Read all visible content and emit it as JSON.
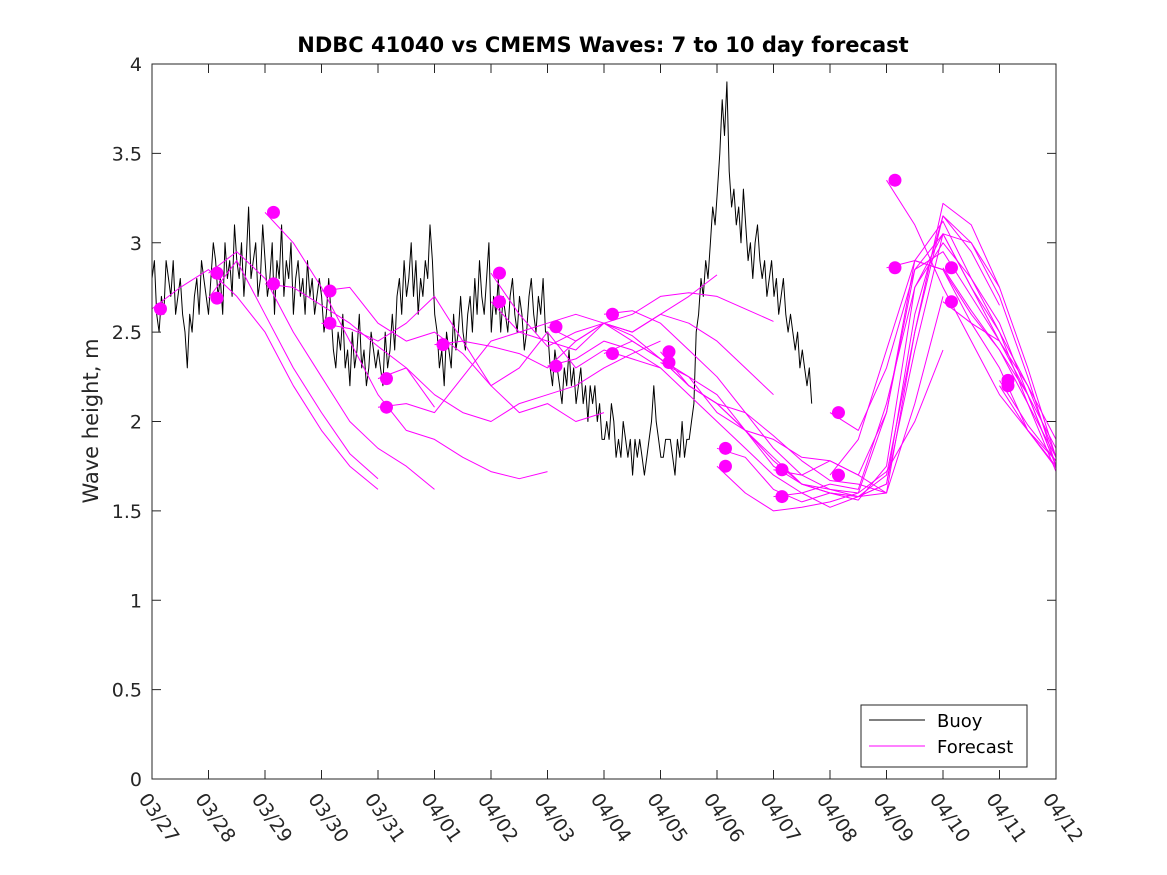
{
  "chart_data": {
    "type": "line",
    "title": "NDBC 41040 vs CMEMS Waves: 7 to 10 day forecast",
    "xlabel": "",
    "ylabel": "Wave height, m",
    "xlim": [
      0,
      16
    ],
    "ylim": [
      0,
      4
    ],
    "grid": false,
    "legend_position": "bottom-right",
    "x_tick_labels": [
      "03/27",
      "03/28",
      "03/29",
      "03/30",
      "03/31",
      "04/01",
      "04/02",
      "04/03",
      "04/04",
      "04/05",
      "04/06",
      "04/07",
      "04/08",
      "04/09",
      "04/10",
      "04/11",
      "04/12"
    ],
    "y_ticks": [
      0,
      0.5,
      1,
      1.5,
      2,
      2.5,
      3,
      3.5,
      4
    ],
    "y_tick_labels": [
      "0",
      "0.5",
      "1",
      "1.5",
      "2",
      "2.5",
      "3",
      "3.5",
      "4"
    ],
    "colors": {
      "buoy": "#000000",
      "forecast": "#ff00ff"
    },
    "legend": [
      "Buoy",
      "Forecast"
    ],
    "series": [
      {
        "name": "Buoy",
        "x_start": 0,
        "x_step": 0.0417,
        "values": [
          2.8,
          2.9,
          2.6,
          2.5,
          2.7,
          2.6,
          2.9,
          2.8,
          2.7,
          2.9,
          2.6,
          2.7,
          2.8,
          2.6,
          2.5,
          2.3,
          2.6,
          2.5,
          2.7,
          2.8,
          2.6,
          2.9,
          2.8,
          2.7,
          2.6,
          2.8,
          3.0,
          2.9,
          2.7,
          2.8,
          2.6,
          3.0,
          2.8,
          2.9,
          2.7,
          3.1,
          2.9,
          2.8,
          3.0,
          2.7,
          2.9,
          3.2,
          2.8,
          2.9,
          3.0,
          2.7,
          2.8,
          3.1,
          2.9,
          2.7,
          2.8,
          3.0,
          2.6,
          2.9,
          2.8,
          3.1,
          2.7,
          2.9,
          2.8,
          3.0,
          2.6,
          2.8,
          2.9,
          2.7,
          2.8,
          2.6,
          2.9,
          2.7,
          2.8,
          2.6,
          2.7,
          2.8,
          2.7,
          2.5,
          2.6,
          2.8,
          2.6,
          2.4,
          2.3,
          2.5,
          2.4,
          2.6,
          2.3,
          2.4,
          2.2,
          2.5,
          2.3,
          2.4,
          2.6,
          2.3,
          2.4,
          2.2,
          2.3,
          2.5,
          2.4,
          2.3,
          2.4,
          2.3,
          2.2,
          2.5,
          2.3,
          2.4,
          2.6,
          2.4,
          2.7,
          2.8,
          2.6,
          2.9,
          2.7,
          2.8,
          3.0,
          2.7,
          2.9,
          2.6,
          2.8,
          2.7,
          2.9,
          2.8,
          3.1,
          2.9,
          2.6,
          2.5,
          2.3,
          2.4,
          2.2,
          2.5,
          2.4,
          2.3,
          2.6,
          2.4,
          2.5,
          2.7,
          2.5,
          2.4,
          2.6,
          2.7,
          2.5,
          2.8,
          2.6,
          2.9,
          2.7,
          2.6,
          2.8,
          3.0,
          2.5,
          2.7,
          2.6,
          2.8,
          2.5,
          2.7,
          2.6,
          2.5,
          2.7,
          2.8,
          2.6,
          2.5,
          2.7,
          2.6,
          2.4,
          2.5,
          2.7,
          2.8,
          2.6,
          2.5,
          2.7,
          2.6,
          2.8,
          2.5,
          2.5,
          2.3,
          2.2,
          2.4,
          2.3,
          2.2,
          2.1,
          2.3,
          2.2,
          2.4,
          2.2,
          2.3,
          2.1,
          2.2,
          2.3,
          2.1,
          2.2,
          2.0,
          2.2,
          2.1,
          2.2,
          2.0,
          2.1,
          1.9,
          1.9,
          2.0,
          1.9,
          2.1,
          2.0,
          1.8,
          1.9,
          1.8,
          2.0,
          1.9,
          1.8,
          1.9,
          1.7,
          1.9,
          1.8,
          1.9,
          1.8,
          1.7,
          1.8,
          1.9,
          2.0,
          2.2,
          2.0,
          1.9,
          1.8,
          1.8,
          1.9,
          1.9,
          1.9,
          1.8,
          1.7,
          1.9,
          1.8,
          2.0,
          1.8,
          1.9,
          1.9,
          2.0,
          2.1,
          2.5,
          2.6,
          2.8,
          2.7,
          2.9,
          2.8,
          3.0,
          3.2,
          3.1,
          3.3,
          3.5,
          3.8,
          3.6,
          3.9,
          3.4,
          3.2,
          3.3,
          3.1,
          3.2,
          3.0,
          3.3,
          3.1,
          2.9,
          3.0,
          2.8,
          3.0,
          3.1,
          2.9,
          2.8,
          2.9,
          2.7,
          2.8,
          2.9,
          2.7,
          2.8,
          2.6,
          2.7,
          2.8,
          2.6,
          2.5,
          2.6,
          2.5,
          2.4,
          2.5,
          2.3,
          2.4,
          2.3,
          2.2,
          2.3,
          2.1
        ]
      },
      {
        "name": "Forecast",
        "x": [
          0,
          0.5,
          1,
          1.5,
          2,
          2.5,
          3,
          3.5,
          4
        ],
        "values": [
          2.63,
          2.75,
          2.85,
          2.7,
          2.5,
          2.2,
          1.95,
          1.75,
          1.62
        ]
      },
      {
        "name": "Forecast",
        "x": [
          1,
          1.5,
          2,
          2.5,
          3,
          3.5,
          4,
          4.5,
          5
        ],
        "values": [
          2.83,
          2.95,
          2.8,
          2.5,
          2.25,
          2.0,
          1.85,
          1.75,
          1.62
        ]
      },
      {
        "name": "Forecast",
        "x": [
          1,
          1.5,
          2,
          2.5,
          3,
          3.5,
          4
        ],
        "values": [
          2.69,
          2.9,
          2.6,
          2.3,
          2.05,
          1.82,
          1.68
        ]
      },
      {
        "name": "Forecast",
        "x": [
          2,
          2.5,
          3,
          3.5,
          4,
          4.5,
          5,
          5.5,
          6,
          6.5,
          7
        ],
        "values": [
          3.17,
          3.0,
          2.75,
          2.45,
          2.15,
          1.95,
          1.9,
          1.8,
          1.72,
          1.68,
          1.72
        ]
      },
      {
        "name": "Forecast",
        "x": [
          2,
          2.5,
          3,
          3.5,
          4,
          4.5,
          5
        ],
        "values": [
          2.77,
          2.75,
          2.65,
          2.55,
          2.42,
          2.3,
          2.08
        ]
      },
      {
        "name": "Forecast",
        "x": [
          3,
          3.5,
          4,
          4.5,
          5,
          5.5,
          6,
          6.5,
          7,
          7.5,
          8
        ],
        "values": [
          2.73,
          2.75,
          2.55,
          2.45,
          2.5,
          2.38,
          2.2,
          2.05,
          2.1,
          2.0,
          2.05
        ]
      },
      {
        "name": "Forecast",
        "x": [
          3,
          3.5,
          4,
          4.5,
          5,
          5.5,
          6,
          6.5,
          7,
          7.5,
          8,
          8.5,
          9
        ],
        "values": [
          2.55,
          2.52,
          2.45,
          2.55,
          2.7,
          2.45,
          2.2,
          2.3,
          2.5,
          2.3,
          2.4,
          2.35,
          2.3
        ]
      },
      {
        "name": "Forecast",
        "x": [
          4,
          4.5,
          5,
          5.5,
          6,
          6.5,
          7,
          7.5,
          8,
          8.5,
          9
        ],
        "values": [
          2.24,
          2.3,
          2.15,
          2.05,
          2.0,
          2.1,
          2.15,
          2.2,
          2.3,
          2.38,
          2.45
        ]
      },
      {
        "name": "Forecast",
        "x": [
          4,
          4.5,
          5,
          5.5,
          6,
          6.5,
          7,
          7.5,
          8,
          8.5,
          9,
          9.5,
          10
        ],
        "values": [
          2.08,
          2.1,
          2.05,
          2.25,
          2.45,
          2.5,
          2.55,
          2.6,
          2.55,
          2.5,
          2.6,
          2.7,
          2.82
        ]
      },
      {
        "name": "Forecast",
        "x": [
          5,
          5.5,
          6,
          6.5,
          7,
          7.5,
          8,
          8.5,
          9,
          9.5,
          10,
          10.5,
          11
        ],
        "values": [
          2.43,
          2.45,
          2.42,
          2.38,
          2.3,
          2.45,
          2.55,
          2.6,
          2.7,
          2.72,
          2.7,
          2.63,
          2.56
        ]
      },
      {
        "name": "Forecast",
        "x": [
          6,
          6.5,
          7,
          7.5,
          8,
          8.5,
          9,
          9.5,
          10,
          10.5,
          11
        ],
        "values": [
          2.83,
          2.6,
          2.42,
          2.5,
          2.55,
          2.5,
          2.6,
          2.55,
          2.45,
          2.3,
          2.15
        ]
      },
      {
        "name": "Forecast",
        "x": [
          6,
          6.5,
          7,
          7.5,
          8,
          8.5,
          9,
          9.5,
          10,
          10.5,
          11,
          11.5,
          12,
          12.5,
          13
        ],
        "values": [
          2.67,
          2.5,
          2.45,
          2.4,
          2.55,
          2.48,
          2.35,
          2.2,
          2.1,
          1.95,
          1.9,
          1.8,
          1.78,
          1.7,
          1.6
        ]
      },
      {
        "name": "Forecast",
        "x": [
          7,
          7.5,
          8,
          8.5,
          9,
          9.5,
          10,
          10.5,
          11,
          11.5,
          12,
          12.5,
          13,
          13.5,
          14
        ],
        "values": [
          2.53,
          2.45,
          2.55,
          2.45,
          2.35,
          2.25,
          2.05,
          1.95,
          1.75,
          1.65,
          1.62,
          1.6,
          1.72,
          2.0,
          2.4
        ]
      },
      {
        "name": "Forecast",
        "x": [
          7,
          7.5,
          8,
          8.5,
          9,
          9.5,
          10,
          10.5,
          11,
          11.5,
          12,
          12.5,
          13,
          13.5,
          14
        ],
        "values": [
          2.31,
          2.35,
          2.45,
          2.4,
          2.3,
          2.15,
          2.0,
          1.85,
          1.7,
          1.6,
          1.52,
          1.58,
          1.6,
          2.1,
          2.7
        ]
      },
      {
        "name": "Forecast",
        "x": [
          8,
          8.5,
          9,
          9.5,
          10,
          10.5,
          11,
          11.5,
          12,
          12.5,
          13,
          13.5,
          14,
          14.5,
          15
        ],
        "values": [
          2.6,
          2.62,
          2.55,
          2.4,
          2.25,
          2.05,
          1.85,
          1.7,
          1.62,
          1.58,
          1.65,
          2.4,
          3.05,
          3.0,
          2.75
        ]
      },
      {
        "name": "Forecast",
        "x": [
          8,
          8.5,
          9,
          9.5,
          10,
          10.5,
          11,
          11.5,
          12,
          12.5,
          13,
          13.5,
          14,
          14.5,
          15
        ],
        "values": [
          2.38,
          2.45,
          2.35,
          2.2,
          2.1,
          1.95,
          1.78,
          1.65,
          1.6,
          1.58,
          1.7,
          2.5,
          3.15,
          2.95,
          2.65
        ]
      },
      {
        "name": "Forecast",
        "x": [
          9,
          9.5,
          10,
          10.5,
          11,
          11.5,
          12,
          12.5,
          13,
          13.5,
          14,
          14.5,
          15,
          15.5,
          16
        ],
        "values": [
          2.39,
          2.2,
          2.1,
          2.05,
          1.92,
          1.78,
          1.67,
          1.65,
          1.6,
          2.5,
          3.22,
          3.1,
          2.75,
          2.3,
          1.8
        ]
      },
      {
        "name": "Forecast",
        "x": [
          9,
          9.5,
          10,
          10.5,
          11,
          11.5,
          12,
          12.5,
          13,
          13.5,
          14,
          14.5,
          15,
          15.5,
          16
        ],
        "values": [
          2.33,
          2.25,
          2.15,
          1.95,
          1.8,
          1.65,
          1.6,
          1.58,
          1.65,
          2.6,
          3.15,
          3.0,
          2.7,
          2.25,
          1.75
        ]
      },
      {
        "name": "Forecast",
        "x": [
          10,
          10.5,
          11,
          11.5,
          12,
          12.5,
          13,
          13.5,
          14,
          14.5,
          15,
          15.5,
          16
        ],
        "values": [
          1.85,
          1.8,
          1.62,
          1.55,
          1.6,
          1.56,
          1.75,
          2.75,
          3.0,
          2.8,
          2.55,
          2.15,
          1.75
        ]
      },
      {
        "name": "Forecast",
        "x": [
          10,
          10.5,
          11,
          11.5,
          12,
          12.5,
          13,
          13.5,
          14,
          14.5,
          15,
          15.5,
          16
        ],
        "values": [
          1.75,
          1.6,
          1.5,
          1.52,
          1.55,
          1.6,
          2.05,
          2.85,
          3.05,
          2.75,
          2.5,
          2.1,
          1.72
        ]
      },
      {
        "name": "Forecast",
        "x": [
          11,
          11.5,
          12,
          12.5,
          13,
          13.5,
          14,
          14.5,
          15,
          15.5,
          16
        ],
        "values": [
          1.73,
          1.7,
          1.78,
          1.7,
          2.05,
          2.9,
          3.12,
          2.8,
          2.5,
          2.2,
          1.8
        ]
      },
      {
        "name": "Forecast",
        "x": [
          11,
          11.5,
          12,
          12.5,
          13,
          13.5,
          14,
          14.5,
          15,
          15.5,
          16
        ],
        "values": [
          1.58,
          1.6,
          1.65,
          1.62,
          2.1,
          2.75,
          3.05,
          2.75,
          2.45,
          2.15,
          1.85
        ]
      },
      {
        "name": "Forecast",
        "x": [
          12,
          12.5,
          13,
          13.5,
          14,
          14.5,
          15,
          15.5,
          16
        ],
        "values": [
          2.05,
          1.95,
          2.3,
          2.85,
          2.95,
          2.7,
          2.45,
          2.2,
          1.9
        ]
      },
      {
        "name": "Forecast",
        "x": [
          12,
          12.5,
          13,
          13.5,
          14,
          14.5,
          15,
          15.5,
          16
        ],
        "values": [
          1.7,
          1.9,
          2.4,
          2.9,
          2.85,
          2.6,
          2.4,
          2.15,
          1.75
        ]
      },
      {
        "name": "Forecast",
        "x": [
          13,
          13.5,
          14,
          14.5,
          15,
          15.5,
          16
        ],
        "values": [
          3.35,
          3.1,
          2.75,
          2.45,
          2.15,
          1.95,
          1.75
        ]
      },
      {
        "name": "Forecast",
        "x": [
          13,
          13.5,
          14,
          14.5,
          15,
          15.5,
          16
        ],
        "values": [
          2.86,
          2.9,
          2.85,
          2.55,
          2.3,
          1.95,
          1.78
        ]
      },
      {
        "name": "Forecast",
        "x": [
          14,
          14.5,
          15,
          15.5,
          16
        ],
        "values": [
          2.86,
          2.62,
          2.4,
          2.1,
          1.8
        ]
      },
      {
        "name": "Forecast",
        "x": [
          14,
          14.5,
          15
        ],
        "values": [
          2.67,
          2.55,
          2.45
        ]
      },
      {
        "name": "Forecast",
        "x": [
          15,
          15.5,
          16
        ],
        "values": [
          2.23,
          1.98,
          1.78
        ]
      },
      {
        "name": "Forecast",
        "x": [
          15,
          15.5,
          16
        ],
        "values": [
          2.2,
          1.95,
          1.74
        ]
      }
    ],
    "forecast_start_points": [
      [
        0.15,
        2.63
      ],
      [
        1.15,
        2.83
      ],
      [
        1.15,
        2.69
      ],
      [
        2.15,
        3.17
      ],
      [
        2.15,
        2.77
      ],
      [
        3.15,
        2.73
      ],
      [
        3.15,
        2.55
      ],
      [
        4.15,
        2.24
      ],
      [
        4.15,
        2.08
      ],
      [
        5.15,
        2.43
      ],
      [
        6.15,
        2.83
      ],
      [
        6.15,
        2.67
      ],
      [
        7.15,
        2.53
      ],
      [
        7.15,
        2.31
      ],
      [
        8.15,
        2.6
      ],
      [
        8.15,
        2.38
      ],
      [
        9.15,
        2.39
      ],
      [
        9.15,
        2.33
      ],
      [
        10.15,
        1.85
      ],
      [
        10.15,
        1.75
      ],
      [
        11.15,
        1.73
      ],
      [
        11.15,
        1.58
      ],
      [
        12.15,
        2.05
      ],
      [
        12.15,
        1.7
      ],
      [
        13.15,
        3.35
      ],
      [
        13.15,
        2.86
      ],
      [
        14.15,
        2.86
      ],
      [
        14.15,
        2.67
      ],
      [
        15.15,
        2.23
      ],
      [
        15.15,
        2.2
      ]
    ]
  }
}
